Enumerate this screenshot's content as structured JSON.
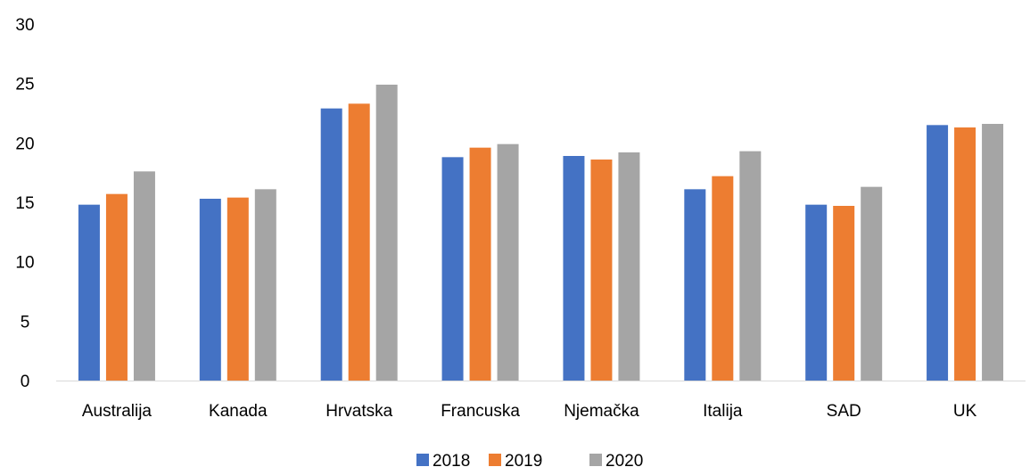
{
  "chart_data": {
    "type": "bar",
    "title": "",
    "xlabel": "",
    "ylabel": "",
    "categories": [
      "Australija",
      "Kanada",
      "Hrvatska",
      "Francuska",
      "Njemačka",
      "Italija",
      "SAD",
      "UK"
    ],
    "series": [
      {
        "name": "2018",
        "color": "#4472C4",
        "values": [
          14.8,
          15.3,
          22.9,
          18.8,
          18.9,
          16.1,
          14.8,
          21.5
        ]
      },
      {
        "name": "2019",
        "color": "#ED7D31",
        "values": [
          15.7,
          15.4,
          23.3,
          19.6,
          18.6,
          17.2,
          14.7,
          21.3
        ]
      },
      {
        "name": "2020",
        "color": "#A5A5A5",
        "values": [
          17.6,
          16.1,
          24.9,
          19.9,
          19.2,
          19.3,
          16.3,
          21.6
        ]
      }
    ],
    "ylim": [
      0,
      30
    ],
    "yticks": [
      0,
      5,
      10,
      15,
      20,
      25,
      30
    ],
    "grid": false,
    "legend_position": "bottom"
  }
}
